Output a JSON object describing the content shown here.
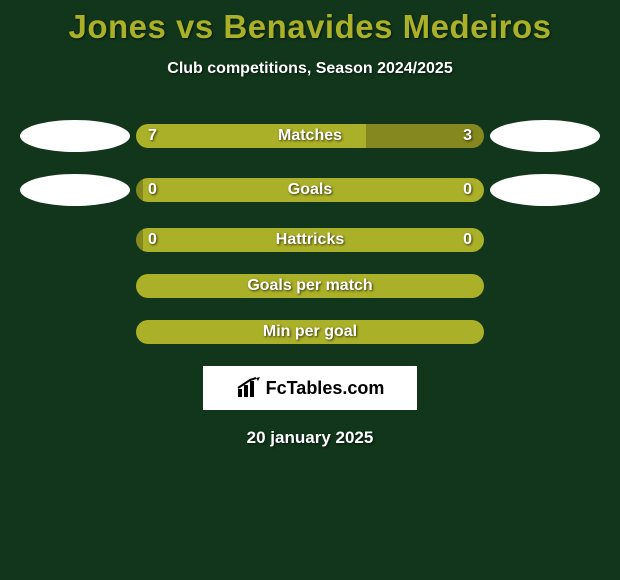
{
  "title": "Jones vs Benavides Medeiros",
  "subtitle": "Club competitions, Season 2024/2025",
  "date": "20 january 2025",
  "logo_text": "FcTables.com",
  "colors": {
    "background": "#11361b",
    "title": "#aab027",
    "text": "#ffffff",
    "bar_primary": "#aab027",
    "bar_secondary": "#85881f",
    "ellipse": "#ffffff",
    "logo_bg": "#ffffff"
  },
  "rows": [
    {
      "label": "Matches",
      "left_value": "7",
      "right_value": "3",
      "left_pct": 66,
      "show_ellipses": true,
      "left_color": "#aab027",
      "right_color": "#85881f"
    },
    {
      "label": "Goals",
      "left_value": "0",
      "right_value": "0",
      "left_pct": 2,
      "show_ellipses": true,
      "left_color": "#85881f",
      "right_color": "#aab027"
    },
    {
      "label": "Hattricks",
      "left_value": "0",
      "right_value": "0",
      "left_pct": 2,
      "show_ellipses": false,
      "left_color": "#85881f",
      "right_color": "#aab027"
    },
    {
      "label": "Goals per match",
      "left_value": "",
      "right_value": "",
      "left_pct": 0,
      "show_ellipses": false,
      "left_color": "#aab027",
      "right_color": "#aab027"
    },
    {
      "label": "Min per goal",
      "left_value": "",
      "right_value": "",
      "left_pct": 0,
      "show_ellipses": false,
      "left_color": "#aab027",
      "right_color": "#aab027"
    }
  ]
}
